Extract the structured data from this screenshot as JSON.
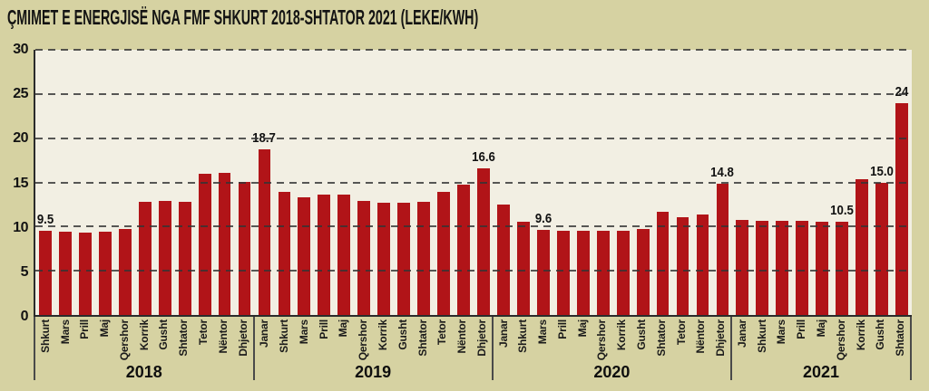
{
  "page": {
    "background_color": "#d6d2a2",
    "plot_background_color": "#f2efe3",
    "axis_color": "#2b2b2b",
    "gridline_color": "#343434",
    "text_color": "#131313"
  },
  "chart_data": {
    "type": "bar",
    "title": "ÇMIMET E ENERGJISË NGA FMF SHKURT 2018-SHTATOR 2021 (LEKE/KWH)",
    "unit": "LEKE/KWH",
    "xlabel": "",
    "ylabel": "",
    "ylim": [
      0,
      30
    ],
    "yticks": [
      0,
      5,
      10,
      15,
      20,
      25,
      30
    ],
    "grid": "horizontal dashed lines at each tick, drawn over bars",
    "legend": "none",
    "bar_color": "#b11418",
    "groups": [
      {
        "year": "2018",
        "months": [
          "Shkurt",
          "Mars",
          "Prill",
          "Maj",
          "Qershor",
          "Korrik",
          "Gusht",
          "Shtator",
          "Tetor",
          "Nëntor",
          "Dhjetor"
        ],
        "values": [
          9.5,
          9.4,
          9.3,
          9.4,
          9.7,
          12.8,
          12.9,
          12.8,
          16.0,
          16.1,
          15.1
        ],
        "value_labels": [
          "9.5",
          null,
          null,
          null,
          null,
          null,
          null,
          null,
          null,
          null,
          null
        ]
      },
      {
        "year": "2019",
        "months": [
          "Janar",
          "Shkurt",
          "Mars",
          "Prill",
          "Maj",
          "Qershor",
          "Korrik",
          "Gusht",
          "Shtator",
          "Tetor",
          "Nëntor",
          "Dhjetor"
        ],
        "values": [
          18.7,
          13.9,
          13.3,
          13.6,
          13.6,
          12.9,
          12.7,
          12.7,
          12.8,
          13.9,
          14.7,
          16.6
        ],
        "value_labels": [
          "18.7",
          null,
          null,
          null,
          null,
          null,
          null,
          null,
          null,
          null,
          null,
          "16.6"
        ]
      },
      {
        "year": "2020",
        "months": [
          "Janar",
          "Shkurt",
          "Mars",
          "Prill",
          "Maj",
          "Qershor",
          "Korrik",
          "Gusht",
          "Shtator",
          "Tetor",
          "Nëntor",
          "Dhjetor"
        ],
        "values": [
          12.5,
          10.5,
          9.6,
          9.5,
          9.5,
          9.5,
          9.5,
          9.7,
          11.7,
          11.1,
          11.4,
          14.8
        ],
        "value_labels": [
          null,
          null,
          "9.6",
          null,
          null,
          null,
          null,
          null,
          null,
          null,
          null,
          "14.8"
        ]
      },
      {
        "year": "2021",
        "months": [
          "Janar",
          "Shkurt",
          "Mars",
          "Prill",
          "Maj",
          "Qershor",
          "Korrik",
          "Gusht",
          "Shtator"
        ],
        "values": [
          10.8,
          10.7,
          10.6,
          10.6,
          10.5,
          10.5,
          15.4,
          15.0,
          24
        ],
        "value_labels": [
          null,
          null,
          null,
          null,
          null,
          "10.5",
          null,
          "15.0",
          "24"
        ]
      }
    ]
  }
}
